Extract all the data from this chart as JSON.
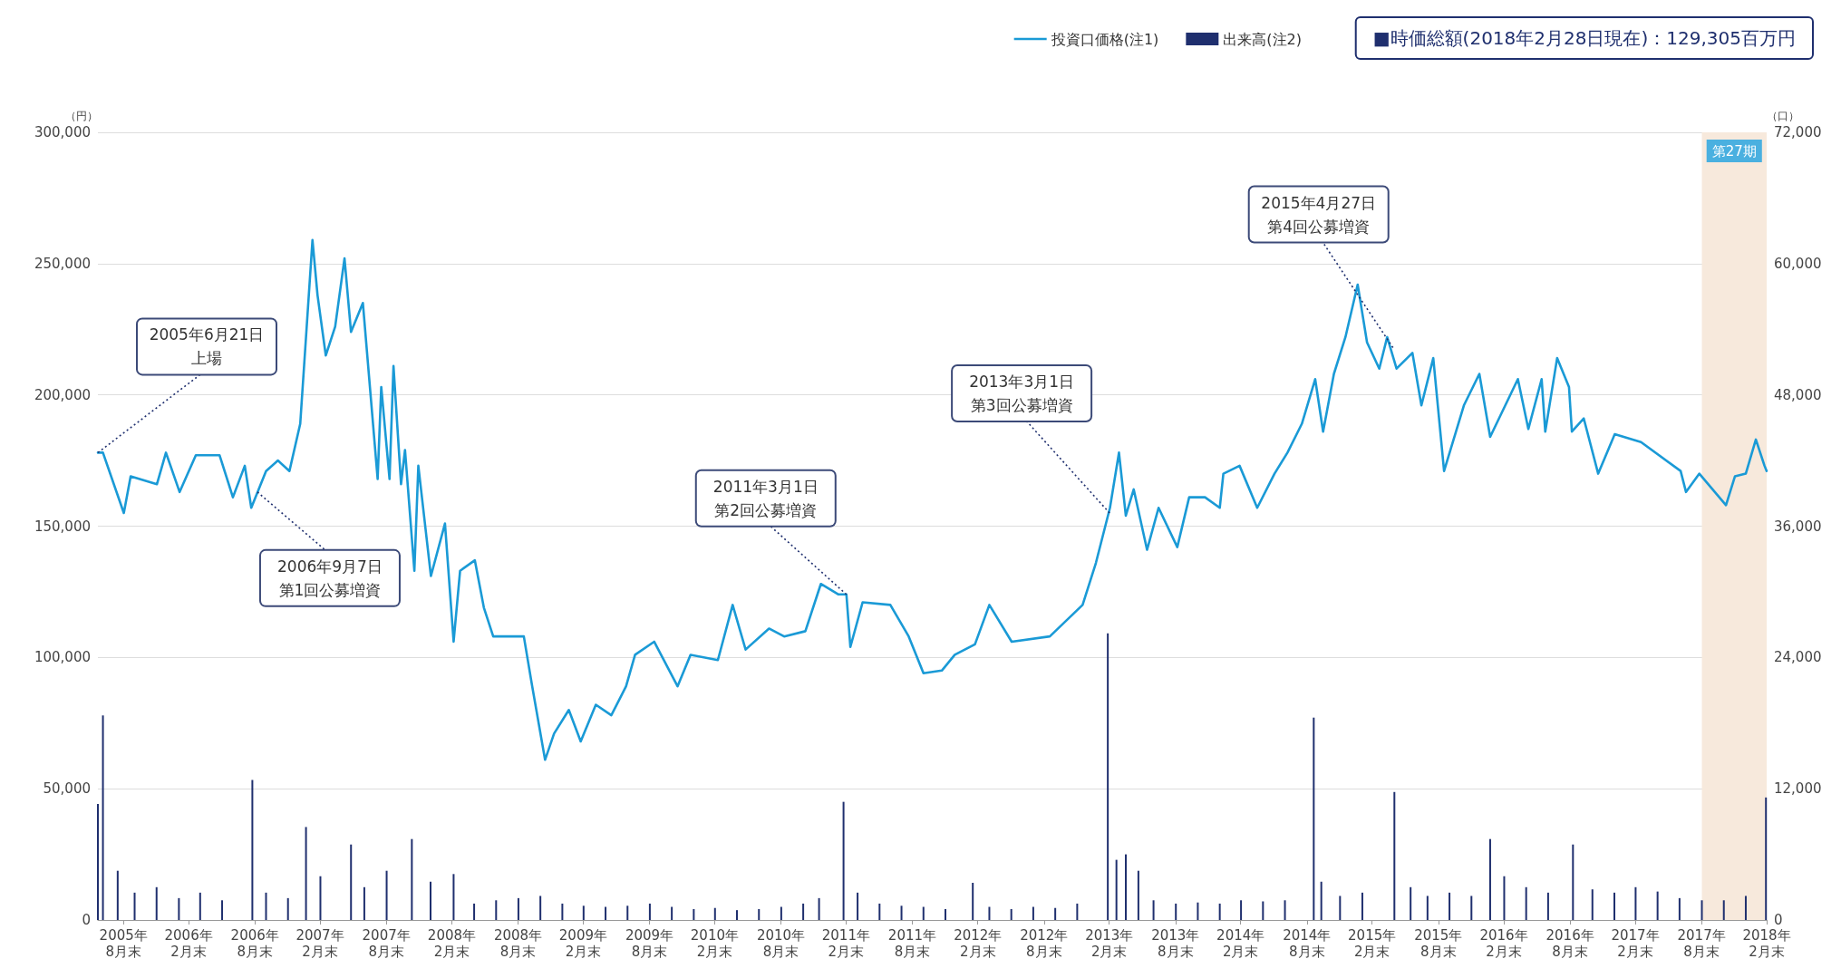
{
  "chart_data": {
    "type": "line",
    "ylabel": "（円）",
    "y2label": "（口）",
    "x": [
      "2005-06-21",
      "2005-07-05",
      "2005-09-01",
      "2005-09-20",
      "2005-12-02",
      "2005-12-27",
      "2006-02-03",
      "2006-03-20",
      "2006-05-25",
      "2006-07-01",
      "2006-08-03",
      "2006-08-21",
      "2006-10-01",
      "2006-11-03",
      "2006-12-05",
      "2007-01-04",
      "2007-02-07",
      "2007-02-21",
      "2007-03-16",
      "2007-04-11",
      "2007-05-07",
      "2007-05-25",
      "2007-06-27",
      "2007-07-19",
      "2007-08-07",
      "2007-08-17",
      "2007-09-09",
      "2007-09-20",
      "2007-10-11",
      "2007-10-22",
      "2007-11-17",
      "2007-11-28",
      "2008-01-02",
      "2008-02-10",
      "2008-03-05",
      "2008-03-23",
      "2008-05-03",
      "2008-05-28",
      "2008-06-23",
      "2008-09-16",
      "2008-10-08",
      "2008-11-14",
      "2008-12-09",
      "2009-01-19",
      "2009-02-21",
      "2009-04-04",
      "2009-05-17",
      "2009-06-27",
      "2009-07-22",
      "2009-09-13",
      "2009-11-17",
      "2009-12-23",
      "2010-03-09",
      "2010-04-19",
      "2010-05-25",
      "2010-07-29",
      "2010-09-09",
      "2010-11-07",
      "2010-12-20",
      "2011-02-07",
      "2011-03-01",
      "2011-03-12",
      "2011-04-15",
      "2011-07-01",
      "2011-08-21",
      "2011-10-01",
      "2011-11-21",
      "2011-12-27",
      "2012-02-21",
      "2012-04-01",
      "2012-06-02",
      "2012-09-16",
      "2012-12-16",
      "2013-01-22",
      "2013-03-02",
      "2013-03-27",
      "2013-04-15",
      "2013-05-07",
      "2013-06-13",
      "2013-07-15",
      "2013-09-05",
      "2013-10-08",
      "2013-11-21",
      "2014-01-01",
      "2014-01-11",
      "2014-02-25",
      "2014-04-15",
      "2014-06-02",
      "2014-07-08",
      "2014-08-17",
      "2014-09-23",
      "2014-10-15",
      "2014-11-14",
      "2014-12-16",
      "2015-01-19",
      "2015-02-14",
      "2015-03-20",
      "2015-04-11",
      "2015-05-07",
      "2015-06-20",
      "2015-07-15",
      "2015-08-17",
      "2015-09-16",
      "2015-11-10",
      "2015-12-23",
      "2016-01-22",
      "2016-04-08",
      "2016-05-07",
      "2016-06-13",
      "2016-06-23",
      "2016-07-26",
      "2016-08-28",
      "2016-09-05",
      "2016-10-08",
      "2016-11-17",
      "2017-01-02",
      "2017-03-16",
      "2017-07-04",
      "2017-07-19",
      "2017-08-25",
      "2017-11-07",
      "2017-12-02",
      "2018-01-01",
      "2018-01-29",
      "2018-02-22",
      "2018-02-28"
    ],
    "series": [
      {
        "name": "投資口価格(注1)",
        "color": "#1a9ad6",
        "values": [
          178000,
          178000,
          155000,
          169000,
          166000,
          178000,
          163000,
          177000,
          177000,
          161000,
          173000,
          157000,
          171000,
          175000,
          171000,
          189000,
          259000,
          238000,
          215000,
          226000,
          252000,
          224000,
          235000,
          199000,
          168000,
          203000,
          168000,
          211000,
          166000,
          179000,
          133000,
          173000,
          131000,
          151000,
          106000,
          133000,
          137000,
          119000,
          108000,
          108000,
          90000,
          61000,
          71000,
          80000,
          68000,
          82000,
          78000,
          89000,
          101000,
          106000,
          89000,
          101000,
          99000,
          120000,
          103000,
          111000,
          108000,
          110000,
          128000,
          124000,
          124000,
          104000,
          121000,
          120000,
          108000,
          94000,
          95000,
          101000,
          105000,
          120000,
          106000,
          108000,
          120000,
          136000,
          157000,
          178000,
          154000,
          164000,
          141000,
          157000,
          142000,
          161000,
          161000,
          157000,
          170000,
          173000,
          157000,
          170000,
          178000,
          189000,
          206000,
          186000,
          208000,
          222000,
          242000,
          220000,
          210000,
          222000,
          210000,
          216000,
          196000,
          214000,
          171000,
          196000,
          208000,
          184000,
          206000,
          187000,
          206000,
          186000,
          214000,
          203000,
          186000,
          191000,
          170000,
          185000,
          182000,
          171000,
          163000,
          170000,
          158000,
          169000,
          170000,
          183000,
          173000,
          171000
        ]
      },
      {
        "name": "出来高(注2)",
        "type": "bar",
        "axis": "y2",
        "color": "#1f2f6e",
        "x": [
          "2005-06-21",
          "2005-07-05",
          "2005-08-15",
          "2005-10-01",
          "2005-12-01",
          "2006-02-01",
          "2006-04-01",
          "2006-06-01",
          "2006-08-24",
          "2006-10-01",
          "2006-12-01",
          "2007-01-20",
          "2007-03-01",
          "2007-05-25",
          "2007-07-01",
          "2007-09-01",
          "2007-11-10",
          "2008-01-01",
          "2008-03-05",
          "2008-05-01",
          "2008-07-01",
          "2008-09-01",
          "2008-11-01",
          "2009-01-01",
          "2009-03-01",
          "2009-05-01",
          "2009-07-01",
          "2009-09-01",
          "2009-11-01",
          "2010-01-01",
          "2010-03-01",
          "2010-05-01",
          "2010-07-01",
          "2010-09-01",
          "2010-11-01",
          "2010-12-15",
          "2011-02-21",
          "2011-04-01",
          "2011-06-01",
          "2011-08-01",
          "2011-10-01",
          "2011-12-01",
          "2012-02-15",
          "2012-04-01",
          "2012-06-01",
          "2012-08-01",
          "2012-10-01",
          "2012-12-01",
          "2013-02-24",
          "2013-03-20",
          "2013-04-15",
          "2013-05-20",
          "2013-07-01",
          "2013-09-01",
          "2013-11-01",
          "2014-01-01",
          "2014-03-01",
          "2014-05-01",
          "2014-07-01",
          "2014-09-19",
          "2014-10-10",
          "2014-12-01",
          "2015-02-01",
          "2015-05-01",
          "2015-06-15",
          "2015-08-01",
          "2015-10-01",
          "2015-12-01",
          "2016-01-22",
          "2016-03-01",
          "2016-05-01",
          "2016-07-01",
          "2016-09-08",
          "2016-11-01",
          "2017-01-01",
          "2017-03-01",
          "2017-05-01",
          "2017-07-01",
          "2017-09-01",
          "2017-11-01",
          "2018-01-01",
          "2018-02-26"
        ],
        "values": [
          10600,
          18700,
          4500,
          2500,
          3000,
          2000,
          2500,
          1800,
          12800,
          2500,
          2000,
          8500,
          4000,
          6900,
          3000,
          4500,
          7400,
          3500,
          4200,
          1500,
          1800,
          2000,
          2200,
          1500,
          1300,
          1200,
          1300,
          1500,
          1200,
          1000,
          1100,
          900,
          1000,
          1200,
          1500,
          2000,
          10800,
          2500,
          1500,
          1300,
          1200,
          1000,
          3400,
          1200,
          1000,
          1200,
          1100,
          1500,
          26200,
          5500,
          6000,
          4500,
          1800,
          1500,
          1600,
          1500,
          1800,
          1700,
          1800,
          18500,
          3500,
          2200,
          2500,
          11700,
          3000,
          2200,
          2500,
          2200,
          7400,
          4000,
          3000,
          2500,
          6900,
          2800,
          2500,
          3000,
          2600,
          2000,
          1800,
          1800,
          2200,
          11200
        ]
      }
    ],
    "xlim": [
      "2005-06-21",
      "2018-02-28"
    ],
    "xticks": [
      {
        "value": "2005-08-31",
        "label": "2005年\n8月末"
      },
      {
        "value": "2006-02-28",
        "label": "2006年\n2月末"
      },
      {
        "value": "2006-08-31",
        "label": "2006年\n8月末"
      },
      {
        "value": "2007-02-28",
        "label": "2007年\n2月末"
      },
      {
        "value": "2007-08-31",
        "label": "2007年\n8月末"
      },
      {
        "value": "2008-02-29",
        "label": "2008年\n2月末"
      },
      {
        "value": "2008-08-31",
        "label": "2008年\n8月末"
      },
      {
        "value": "2009-02-28",
        "label": "2009年\n2月末"
      },
      {
        "value": "2009-08-31",
        "label": "2009年\n8月末"
      },
      {
        "value": "2010-02-28",
        "label": "2010年\n2月末"
      },
      {
        "value": "2010-08-31",
        "label": "2010年\n8月末"
      },
      {
        "value": "2011-02-28",
        "label": "2011年\n2月末"
      },
      {
        "value": "2011-08-31",
        "label": "2011年\n8月末"
      },
      {
        "value": "2012-02-29",
        "label": "2012年\n2月末"
      },
      {
        "value": "2012-08-31",
        "label": "2012年\n8月末"
      },
      {
        "value": "2013-02-28",
        "label": "2013年\n2月末"
      },
      {
        "value": "2013-08-31",
        "label": "2013年\n8月末"
      },
      {
        "value": "2014-02-28",
        "label": "2014年\n2月末"
      },
      {
        "value": "2014-08-31",
        "label": "2014年\n8月末"
      },
      {
        "value": "2015-02-28",
        "label": "2015年\n2月末"
      },
      {
        "value": "2015-08-31",
        "label": "2015年\n8月末"
      },
      {
        "value": "2016-02-29",
        "label": "2016年\n2月末"
      },
      {
        "value": "2016-08-31",
        "label": "2016年\n8月末"
      },
      {
        "value": "2017-02-28",
        "label": "2017年\n2月末"
      },
      {
        "value": "2017-08-31",
        "label": "2017年\n8月末"
      },
      {
        "value": "2018-02-28",
        "label": "2018年\n2月末"
      }
    ],
    "ylim": [
      0,
      300000
    ],
    "yticks": [
      0,
      {
        "value": 50000,
        "label": "50,000"
      },
      {
        "value": 100000,
        "label": "100,000"
      },
      {
        "value": 150000,
        "label": "150,000"
      },
      {
        "value": 200000,
        "label": "200,000"
      },
      {
        "value": 250000,
        "label": "250,000"
      },
      {
        "value": 300000,
        "label": "300,000"
      }
    ],
    "y2lim": [
      0,
      72000
    ],
    "y2ticks": [
      0,
      {
        "value": 12000,
        "label": "12,000"
      },
      {
        "value": 24000,
        "label": "24,000"
      },
      {
        "value": 36000,
        "label": "36,000"
      },
      {
        "value": 48000,
        "label": "48,000"
      },
      {
        "value": 60000,
        "label": "60,000"
      },
      {
        "value": 72000,
        "label": "72,000"
      }
    ],
    "bands": [
      {
        "axis": "x",
        "from": "2017-09-01",
        "to": "2018-02-28",
        "label": "第27期",
        "color": "#f7e9dc"
      }
    ],
    "annotations": [
      "■時価総額(2018年2月28日現在)：129,305百万円",
      {
        "text": "2005年6月21日上場",
        "x": "2005-06-21",
        "y": 178000
      },
      {
        "text": "2006年9月7日第1回公募増資",
        "x": "2006-09-07",
        "y": 163000
      },
      {
        "text": "2011年3月1日第2回公募増資",
        "x": "2011-03-01",
        "y": 124000
      },
      {
        "text": "2013年3月1日第3回公募増資",
        "x": "2013-03-01",
        "y": 155000
      },
      {
        "text": "2015年4月27日第4回公募増資",
        "x": "2015-04-27",
        "y": 218000
      }
    ],
    "grid": "y",
    "legend": "top right",
    "marker": "none",
    "line_style": "solid"
  }
}
